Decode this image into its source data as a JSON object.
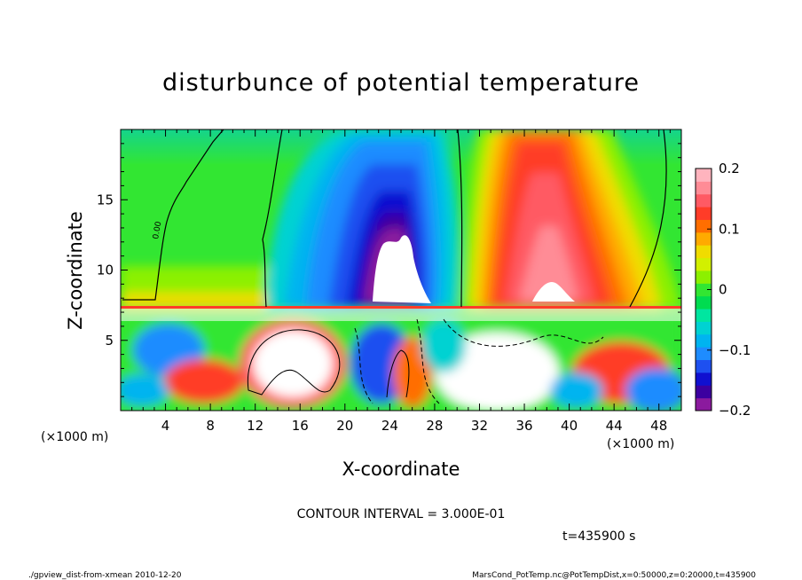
{
  "chart_data": {
    "type": "heatmap",
    "title": "disturbunce of potential temperature",
    "xlabel": "X-coordinate",
    "ylabel": "Z-coordinate",
    "xunit_left": "(×1000 m)",
    "xunit_right": "(×1000 m)",
    "xlim": [
      0,
      50
    ],
    "ylim": [
      0,
      20
    ],
    "xticks": [
      "4",
      "8",
      "12",
      "16",
      "20",
      "24",
      "28",
      "32",
      "36",
      "40",
      "44",
      "48"
    ],
    "yticks": [
      "5",
      "10",
      "15"
    ],
    "contour_label": "0.00",
    "colorbar": {
      "ticks": [
        "0.2",
        "0.1",
        "0",
        "−0.1",
        "−0.2"
      ],
      "range": [
        -0.2,
        0.2
      ],
      "colors": [
        "#8b1a9e",
        "#3c00a0",
        "#1010d0",
        "#1e50f0",
        "#1e8cff",
        "#00b4f0",
        "#00d2d2",
        "#00e6a0",
        "#00dc50",
        "#32e632",
        "#8cf000",
        "#d2f000",
        "#f0dc00",
        "#ffaa00",
        "#ff6e00",
        "#ff3c28",
        "#ff5a64",
        "#ff8c96",
        "#ffb4be"
      ]
    },
    "contour_interval_text": "CONTOUR INTERVAL = 3.000E-01",
    "time_text": "t=435900 s",
    "footer_left": "./gpview_dist-from-xmean  2010-12-20",
    "footer_right": "MarsCond_PotTemp.nc@PotTempDist,x=0:50000,z=0:20000,t=435900"
  }
}
